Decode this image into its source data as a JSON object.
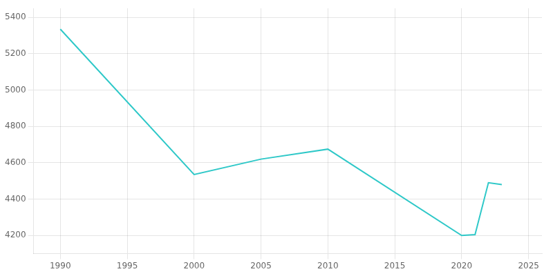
{
  "chart_data": {
    "type": "line",
    "x": [
      1990,
      2000,
      2005,
      2010,
      2020,
      2021,
      2022,
      2023
    ],
    "values": [
      5335,
      4535,
      4620,
      4675,
      4200,
      4205,
      4490,
      4480
    ],
    "color": "#2ec8c8",
    "xlim": [
      1988,
      2026
    ],
    "ylim": [
      4100,
      5450
    ],
    "xticks": [
      1990,
      1995,
      2000,
      2005,
      2010,
      2015,
      2020,
      2025
    ],
    "yticks": [
      4200,
      4400,
      4600,
      4800,
      5000,
      5200,
      5400
    ],
    "grid": true
  }
}
